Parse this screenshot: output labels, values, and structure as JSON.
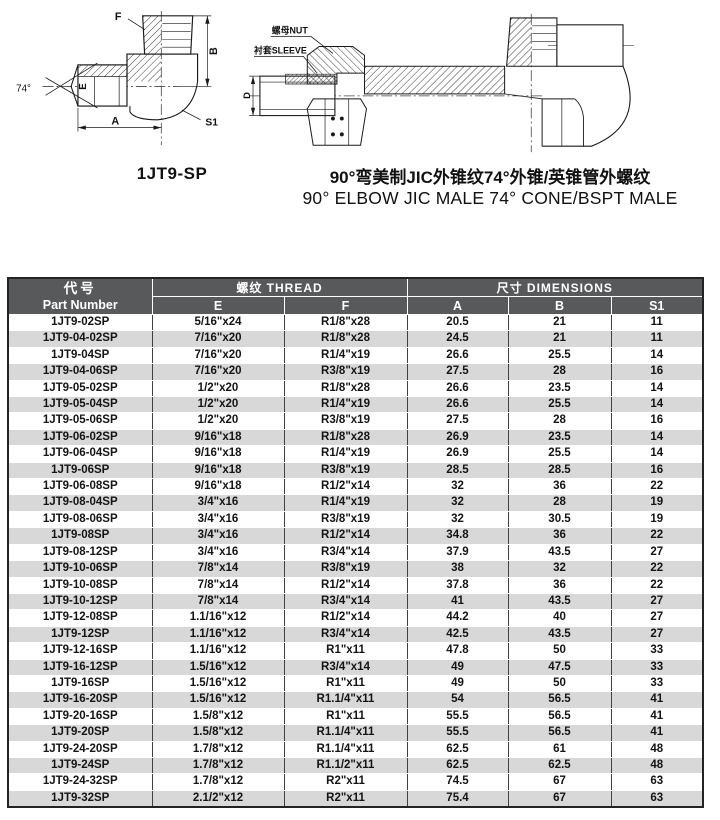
{
  "title": {
    "cn": "90°弯美制JIC外锥纹74°外锥/英锥管外螺纹",
    "en": "90° ELBOW JIC MALE 74° CONE/BSPT MALE"
  },
  "figures": {
    "left": {
      "caption": "1JT9-SP",
      "labels": {
        "f": "F",
        "b": "B",
        "e": "E",
        "a": "A",
        "s1": "S1",
        "angle": "74°"
      }
    },
    "right": {
      "labels": {
        "nut": "螺母NUT",
        "sleeve": "衬套SLEEVE",
        "d": "D"
      }
    }
  },
  "table": {
    "header": {
      "part_cn": "代号",
      "part_en": "Part Number",
      "thread_group": "螺纹 THREAD",
      "dims_group": "尺寸 DIMENSIONS",
      "sub": [
        "E",
        "F",
        "A",
        "B",
        "S1"
      ]
    },
    "colors": {
      "header_bg": "#58595B",
      "row_alt": "#D8D8D8",
      "row_base": "#FFFFFF"
    },
    "rows": [
      [
        "1JT9-02SP",
        "5/16\"x24",
        "R1/8\"x28",
        "20.5",
        "21",
        "11"
      ],
      [
        "1JT9-04-02SP",
        "7/16\"x20",
        "R1/8\"x28",
        "24.5",
        "21",
        "11"
      ],
      [
        "1JT9-04SP",
        "7/16\"x20",
        "R1/4\"x19",
        "26.6",
        "25.5",
        "14"
      ],
      [
        "1JT9-04-06SP",
        "7/16\"x20",
        "R3/8\"x19",
        "27.5",
        "28",
        "16"
      ],
      [
        "1JT9-05-02SP",
        "1/2\"x20",
        "R1/8\"x28",
        "26.6",
        "23.5",
        "14"
      ],
      [
        "1JT9-05-04SP",
        "1/2\"x20",
        "R1/4\"x19",
        "26.6",
        "25.5",
        "14"
      ],
      [
        "1JT9-05-06SP",
        "1/2\"x20",
        "R3/8\"x19",
        "27.5",
        "28",
        "16"
      ],
      [
        "1JT9-06-02SP",
        "9/16\"x18",
        "R1/8\"x28",
        "26.9",
        "23.5",
        "14"
      ],
      [
        "1JT9-06-04SP",
        "9/16\"x18",
        "R1/4\"x19",
        "26.9",
        "25.5",
        "14"
      ],
      [
        "1JT9-06SP",
        "9/16\"x18",
        "R3/8\"x19",
        "28.5",
        "28.5",
        "16"
      ],
      [
        "1JT9-06-08SP",
        "9/16\"x18",
        "R1/2\"x14",
        "32",
        "36",
        "22"
      ],
      [
        "1JT9-08-04SP",
        "3/4\"x16",
        "R1/4\"x19",
        "32",
        "28",
        "19"
      ],
      [
        "1JT9-08-06SP",
        "3/4\"x16",
        "R3/8\"x19",
        "32",
        "30.5",
        "19"
      ],
      [
        "1JT9-08SP",
        "3/4\"x16",
        "R1/2\"x14",
        "34.8",
        "36",
        "22"
      ],
      [
        "1JT9-08-12SP",
        "3/4\"x16",
        "R3/4\"x14",
        "37.9",
        "43.5",
        "27"
      ],
      [
        "1JT9-10-06SP",
        "7/8\"x14",
        "R3/8\"x19",
        "38",
        "32",
        "22"
      ],
      [
        "1JT9-10-08SP",
        "7/8\"x14",
        "R1/2\"x14",
        "37.8",
        "36",
        "22"
      ],
      [
        "1JT9-10-12SP",
        "7/8\"x14",
        "R3/4\"x14",
        "41",
        "43.5",
        "27"
      ],
      [
        "1JT9-12-08SP",
        "1.1/16\"x12",
        "R1/2\"x14",
        "44.2",
        "40",
        "27"
      ],
      [
        "1JT9-12SP",
        "1.1/16\"x12",
        "R3/4\"x14",
        "42.5",
        "43.5",
        "27"
      ],
      [
        "1JT9-12-16SP",
        "1.1/16\"x12",
        "R1\"x11",
        "47.8",
        "50",
        "33"
      ],
      [
        "1JT9-16-12SP",
        "1.5/16\"x12",
        "R3/4\"x14",
        "49",
        "47.5",
        "33"
      ],
      [
        "1JT9-16SP",
        "1.5/16\"x12",
        "R1\"x11",
        "49",
        "50",
        "33"
      ],
      [
        "1JT9-16-20SP",
        "1.5/16\"x12",
        "R1.1/4\"x11",
        "54",
        "56.5",
        "41"
      ],
      [
        "1JT9-20-16SP",
        "1.5/8\"x12",
        "R1\"x11",
        "55.5",
        "56.5",
        "41"
      ],
      [
        "1JT9-20SP",
        "1.5/8\"x12",
        "R1.1/4\"x11",
        "55.5",
        "56.5",
        "41"
      ],
      [
        "1JT9-24-20SP",
        "1.7/8\"x12",
        "R1.1/4\"x11",
        "62.5",
        "61",
        "48"
      ],
      [
        "1JT9-24SP",
        "1.7/8\"x12",
        "R1.1/2\"x11",
        "62.5",
        "62.5",
        "48"
      ],
      [
        "1JT9-24-32SP",
        "1.7/8\"x12",
        "R2\"x11",
        "74.5",
        "67",
        "63"
      ],
      [
        "1JT9-32SP",
        "2.1/2\"x12",
        "R2\"x11",
        "75.4",
        "67",
        "63"
      ]
    ]
  }
}
